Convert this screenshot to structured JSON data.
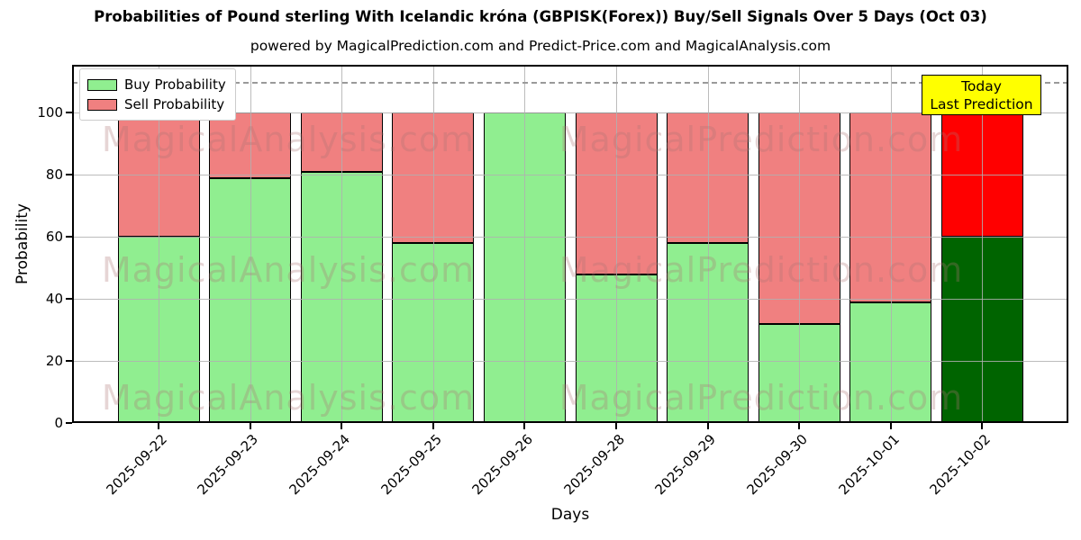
{
  "title": "Probabilities of Pound sterling With Icelandic króna (GBPISK(Forex)) Buy/Sell Signals Over 5 Days (Oct 03)",
  "subtitle": "powered by MagicalPrediction.com and Predict-Price.com and MagicalAnalysis.com",
  "legend": {
    "items": [
      {
        "label": "Buy Probability",
        "color": "#90EE90"
      },
      {
        "label": "Sell Probability",
        "color": "#F08080"
      }
    ]
  },
  "annotation": {
    "line1": "Today",
    "line2": "Last Prediction",
    "bg_color": "#FFFF00"
  },
  "watermarks": {
    "left": "MagicalAnalysis.com",
    "right": "MagicalPrediction.com"
  },
  "axes": {
    "xlabel": "Days",
    "ylabel": "Probability",
    "yticks": [
      0,
      20,
      40,
      60,
      80,
      100
    ],
    "ylim": [
      0,
      115.5
    ],
    "threshold_value": 110,
    "grid": true
  },
  "colors": {
    "buy": "#90EE90",
    "sell": "#F08080",
    "last_buy": "#006400",
    "last_sell": "#FF0000",
    "bar_edge": "#000000",
    "threshold_line": "#9A9A9A",
    "annotation_bg": "#FFFF00"
  },
  "chart_data": {
    "type": "bar",
    "stacked": true,
    "title": "Probabilities of Pound sterling With Icelandic króna (GBPISK(Forex)) Buy/Sell Signals Over 5 Days (Oct 03)",
    "xlabel": "Days",
    "ylabel": "Probability",
    "ylim": [
      0,
      115.5
    ],
    "grid": true,
    "legend_position": "upper left",
    "threshold_dashed_line": 110,
    "categories": [
      "2025-09-22",
      "2025-09-23",
      "2025-09-24",
      "2025-09-25",
      "2025-09-26",
      "2025-09-28",
      "2025-09-29",
      "2025-09-30",
      "2025-10-01",
      "2025-10-02"
    ],
    "series": [
      {
        "name": "Buy Probability",
        "color": "#90EE90",
        "values": [
          60,
          79,
          81,
          58,
          100,
          48,
          58,
          32,
          39,
          60
        ]
      },
      {
        "name": "Sell Probability",
        "color": "#F08080",
        "values": [
          40,
          21,
          19,
          42,
          0,
          52,
          42,
          68,
          61,
          40
        ]
      }
    ],
    "highlight_last_bar": {
      "label": "Today / Last Prediction",
      "buy_color": "#006400",
      "sell_color": "#FF0000"
    }
  }
}
